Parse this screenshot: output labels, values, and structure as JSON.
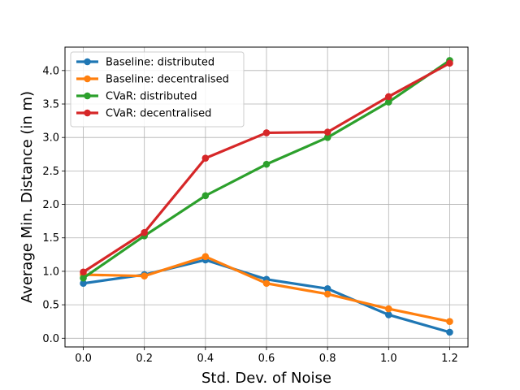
{
  "chart_data": {
    "type": "line",
    "title": "",
    "xlabel": "Std. Dev. of Noise",
    "ylabel": "Average Min. Distance (in m)",
    "x": [
      0.0,
      0.2,
      0.4,
      0.6,
      0.8,
      1.0,
      1.2
    ],
    "xticks": [
      "0.0",
      "0.2",
      "0.4",
      "0.6",
      "0.8",
      "1.0",
      "1.2"
    ],
    "yticks": [
      "0.0",
      "0.5",
      "1.0",
      "1.5",
      "2.0",
      "2.5",
      "3.0",
      "3.5",
      "4.0"
    ],
    "xlim": [
      -0.06,
      1.26
    ],
    "ylim": [
      -0.13,
      4.35
    ],
    "grid": true,
    "legend_position": "top-left",
    "series": [
      {
        "name": "Baseline: distributed",
        "color": "#1f77b4",
        "values": [
          0.82,
          0.95,
          1.17,
          0.88,
          0.74,
          0.35,
          0.09
        ]
      },
      {
        "name": "Baseline: decentralised",
        "color": "#ff7f0e",
        "values": [
          0.95,
          0.93,
          1.22,
          0.82,
          0.66,
          0.44,
          0.25
        ]
      },
      {
        "name": "CVaR: distributed",
        "color": "#2ca02c",
        "values": [
          0.9,
          1.53,
          2.13,
          2.6,
          3.0,
          3.53,
          4.15
        ]
      },
      {
        "name": "CVaR: decentralised",
        "color": "#d62728",
        "values": [
          0.99,
          1.58,
          2.69,
          3.07,
          3.08,
          3.61,
          4.11
        ]
      }
    ]
  }
}
